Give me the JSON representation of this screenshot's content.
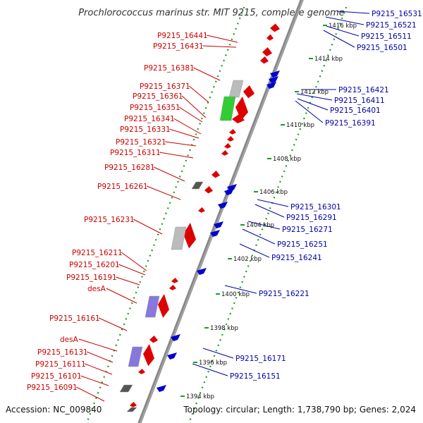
{
  "title": "Prochlorococcus marinus str. MIT 9215, complete genome",
  "footer": {
    "accession": "Accession: NC_009840",
    "topology": "Topology: circular; Length: 1,738,790 bp; Genes: 2,024"
  },
  "colors": {
    "forward": "#dd0000",
    "reverse": "#0000cc",
    "label_forward": "#cc0000",
    "label_reverse": "#0000aa",
    "axis": "#888888",
    "scale_dots": "#1f9a1f",
    "gray_feature": "#bbbbbb",
    "green_feature": "#33cc33",
    "purple_feature": "#8877dd",
    "dark_feature": "#555555"
  },
  "kbp_labels": [
    "1416 kbp",
    "1414 kbp",
    "1412 kbp",
    "1410 kbp",
    "1408 kbp",
    "1406 kbp",
    "1404 kbp",
    "1402 kbp",
    "1400 kbp",
    "1398 kbp",
    "1396 kbp",
    "1394 kbp"
  ],
  "left_labels": [
    "P9215_16441",
    "P9215_16431",
    "P9215_16381",
    "P9215_16371",
    "P9215_16361",
    "P9215_16351",
    "P9215_16341",
    "P9215_16331",
    "P9215_16321",
    "P9215_16311",
    "P9215_16281",
    "P9215_16261",
    "P9215_16231",
    "P9215_16211",
    "P9215_16201",
    "P9215_16191",
    "desA",
    "P9215_16161",
    "desA",
    "P9215_16131",
    "P9215_16111",
    "P9215_16101",
    "P9215_16091"
  ],
  "right_labels": [
    "P9215_16531",
    "P9215_16521",
    "P9215_16511",
    "P9215_16501",
    "P9215_16421",
    "P9215_16411",
    "P9215_16401",
    "P9215_16391",
    "P9215_16301",
    "P9215_16291",
    "P9215_16271",
    "P9215_16251",
    "P9215_16241",
    "P9215_16221",
    "P9215_16171",
    "P9215_16151"
  ]
}
